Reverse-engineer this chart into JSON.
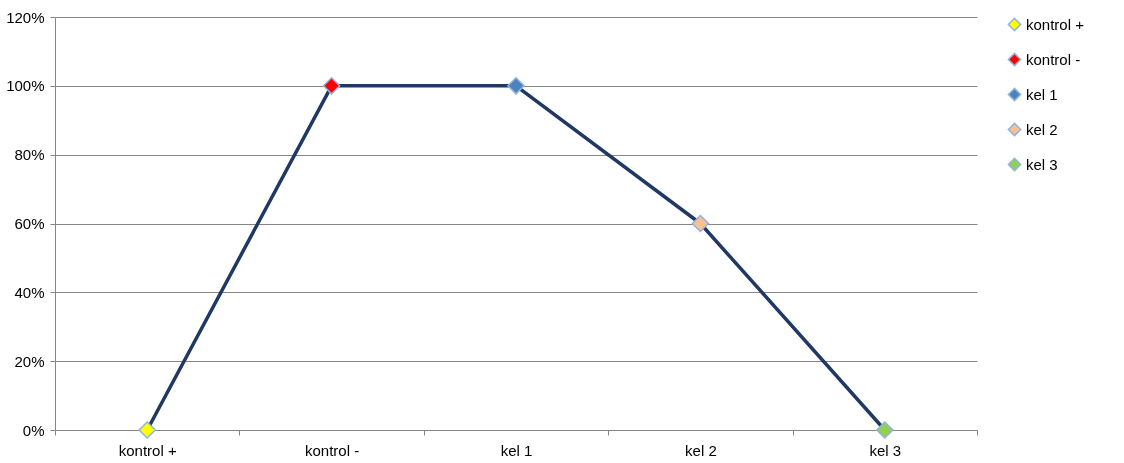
{
  "chart_data": {
    "type": "line",
    "categories": [
      "kontrol +",
      "kontrol -",
      "kel 1",
      "kel 2",
      "kel 3"
    ],
    "series": [
      {
        "color": "#1f3864",
        "marker": "none",
        "values": [
          0,
          100,
          100,
          60,
          0
        ]
      },
      {
        "type": "scatter",
        "marker": "diamond",
        "name": "kontrol +",
        "color": "#ffff00",
        "values": [
          0,
          null,
          null,
          null,
          null
        ]
      },
      {
        "type": "scatter",
        "marker": "diamond",
        "name": "kontrol -",
        "color": "#ff0000",
        "values": [
          null,
          100,
          null,
          null,
          null
        ]
      },
      {
        "type": "scatter",
        "marker": "diamond",
        "name": "kel 1",
        "color": "#4f81bd",
        "values": [
          null,
          null,
          100,
          null,
          null
        ]
      },
      {
        "type": "scatter",
        "marker": "diamond",
        "name": "kel 2",
        "color": "#fac090",
        "values": [
          null,
          null,
          null,
          60,
          null
        ]
      },
      {
        "type": "scatter",
        "marker": "diamond",
        "name": "kel 3",
        "color": "#92d050",
        "values": [
          null,
          null,
          null,
          null,
          0
        ]
      }
    ],
    "ylim": [
      0,
      120
    ],
    "yticks": [
      {
        "value": 0,
        "label": "0%"
      },
      {
        "value": 20,
        "label": "20%"
      },
      {
        "value": 40,
        "label": "40%"
      },
      {
        "value": 60,
        "label": "60%"
      },
      {
        "value": 80,
        "label": "80%"
      },
      {
        "value": 100,
        "label": "100%"
      },
      {
        "value": 120,
        "label": "120%"
      }
    ],
    "grid": "y",
    "legend": "right",
    "line_style": "solid"
  }
}
